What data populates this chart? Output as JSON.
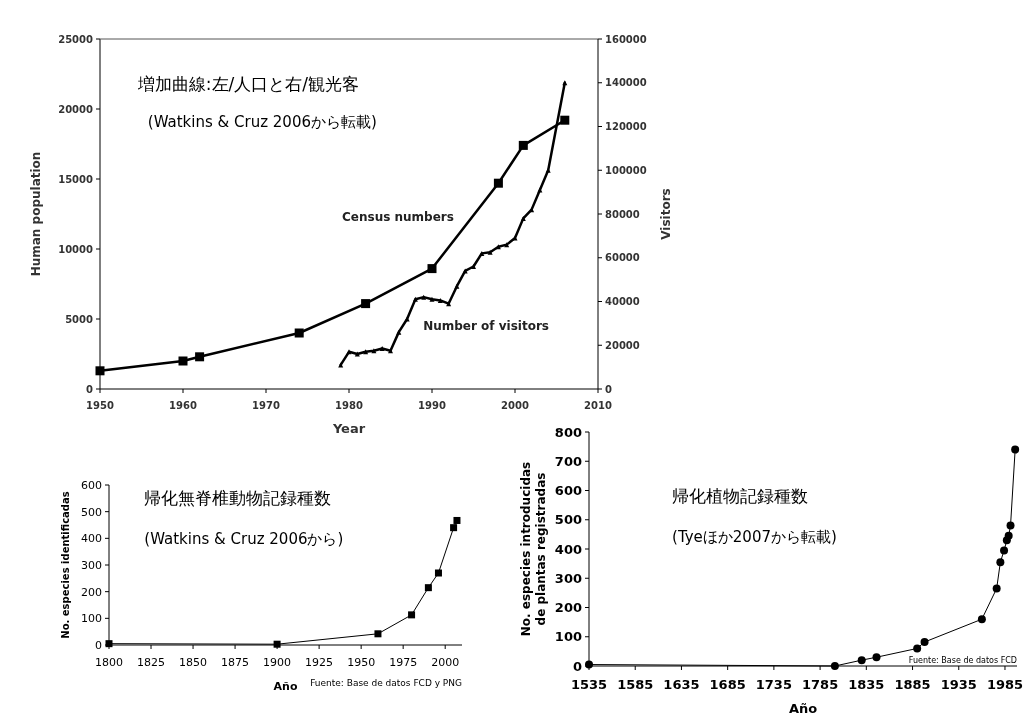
{
  "chart_data": [
    {
      "type": "line",
      "xlabel": "Year",
      "ylabel": "Human population",
      "y2label": "Visitors",
      "annotations": [
        "増加曲線:左/人口と右/観光客",
        "(Watkins & Cruz 2006から転載)"
      ],
      "xlim": [
        1950,
        2010
      ],
      "xticks": [
        1950,
        1960,
        1970,
        1980,
        1990,
        2000,
        2010
      ],
      "ylim": [
        0,
        25000
      ],
      "yticks": [
        0,
        5000,
        10000,
        15000,
        20000,
        25000
      ],
      "y2lim": [
        0,
        160000
      ],
      "y2ticks": [
        0,
        20000,
        40000,
        60000,
        80000,
        100000,
        120000,
        140000,
        160000
      ],
      "series": [
        {
          "name": "Census numbers",
          "color": "#000000",
          "marker": "square",
          "x": [
            1950,
            1960,
            1962,
            1974,
            1982,
            1990,
            1998,
            2001,
            2006
          ],
          "values": [
            1300,
            2000,
            2300,
            4000,
            6100,
            8600,
            14700,
            17400,
            19200
          ]
        },
        {
          "name": "Number of visitors",
          "color": "#000000",
          "marker": "triangle",
          "axis": "y2",
          "x": [
            1979,
            1980,
            1981,
            1982,
            1983,
            1984,
            1985,
            1986,
            1987,
            1988,
            1989,
            1990,
            1991,
            1992,
            1993,
            1994,
            1995,
            1996,
            1997,
            1998,
            1999,
            2000,
            2001,
            2002,
            2003,
            2004,
            2006
          ],
          "values": [
            11000,
            17000,
            16000,
            17000,
            17500,
            18500,
            17500,
            26000,
            32000,
            41000,
            42000,
            41000,
            40500,
            39000,
            47000,
            54000,
            56000,
            62000,
            62500,
            65000,
            66000,
            69000,
            78000,
            82000,
            91000,
            100000,
            140000
          ]
        }
      ]
    },
    {
      "type": "line",
      "xlabel": "Año",
      "ylabel": "No. especies identificadas",
      "annotations": [
        "帰化無脊椎動物記録種数",
        "(Watkins & Cruz 2006から)",
        "Fuente: Base de datos FCD y PNG"
      ],
      "xlim": [
        1800,
        2010
      ],
      "xticks": [
        1800,
        1825,
        1850,
        1875,
        1900,
        1925,
        1950,
        1975,
        2000
      ],
      "ylim": [
        0,
        600
      ],
      "yticks": [
        0,
        100,
        200,
        300,
        400,
        500,
        600
      ],
      "series": [
        {
          "color": "#000000",
          "marker": "square",
          "x": [
            1800,
            1900,
            1960,
            1980,
            1990,
            1996,
            2005,
            2007
          ],
          "values": [
            5,
            3,
            42,
            113,
            215,
            270,
            440,
            467
          ]
        }
      ]
    },
    {
      "type": "line",
      "xlabel": "Año",
      "ylabel": "No. especies introducidas\nde plantas registradas",
      "annotations": [
        "帰化植物記録種数",
        "(Tyeほか2007から転載)",
        "Fuente: Base de datos FCD"
      ],
      "xlim": [
        1535,
        1998
      ],
      "xticks": [
        1535,
        1585,
        1635,
        1685,
        1735,
        1785,
        1835,
        1885,
        1935,
        1985
      ],
      "ylim": [
        0,
        800
      ],
      "yticks": [
        0,
        100,
        200,
        300,
        400,
        500,
        600,
        700,
        800
      ],
      "series": [
        {
          "color": "#000000",
          "marker": "circle",
          "x": [
            1535,
            1801,
            1830,
            1846,
            1890,
            1898,
            1960,
            1976,
            1980,
            1984,
            1987,
            1989,
            1991,
            1996
          ],
          "values": [
            5,
            0,
            20,
            30,
            60,
            82,
            160,
            265,
            355,
            395,
            430,
            445,
            480,
            740
          ]
        }
      ]
    }
  ]
}
